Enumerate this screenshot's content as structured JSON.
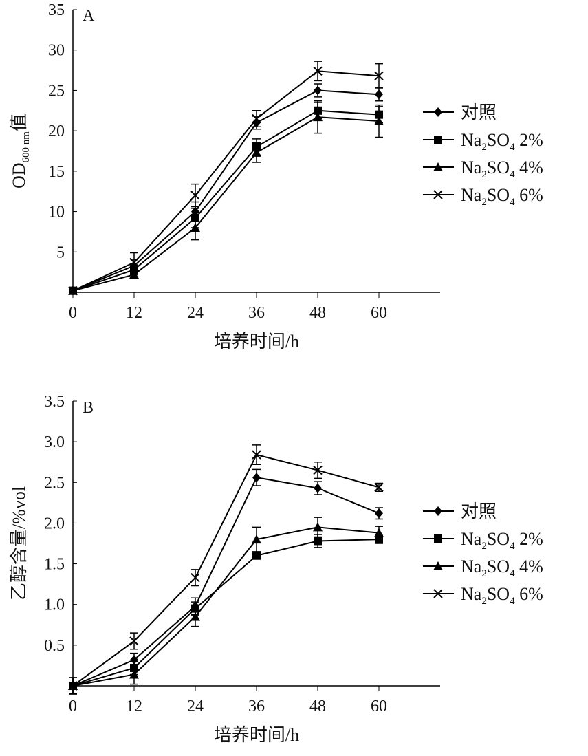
{
  "chart_data": [
    {
      "type": "line",
      "panel_label": "A",
      "title": "",
      "xlabel": "培养时间/h",
      "ylabel_main": "OD",
      "ylabel_sub": "600 nm",
      "ylabel_suffix": "值",
      "x": [
        0,
        12,
        24,
        36,
        48,
        60
      ],
      "xticks": [
        "0",
        "12",
        "24",
        "36",
        "48",
        "60"
      ],
      "xlim": [
        0,
        72
      ],
      "yticks": [
        "5",
        "10",
        "15",
        "20",
        "25",
        "30",
        "35"
      ],
      "ytick_values": [
        5,
        10,
        15,
        20,
        25,
        30,
        35
      ],
      "ylim": [
        0,
        35
      ],
      "series": [
        {
          "name": "对照",
          "marker": "diamond",
          "values": [
            0.2,
            3.3,
            10,
            21,
            25,
            24.5
          ],
          "err": [
            0.3,
            0.8,
            1.2,
            0.8,
            0.8,
            0.8
          ]
        },
        {
          "name": "Na2SO4 2%",
          "name_parts": [
            "Na",
            "2",
            "SO",
            "4",
            " 2%"
          ],
          "marker": "square",
          "values": [
            0.2,
            2.8,
            9.2,
            18,
            22.5,
            22
          ],
          "err": [
            0.3,
            0.6,
            1.2,
            1,
            1,
            1
          ]
        },
        {
          "name": "Na2SO4 4%",
          "name_parts": [
            "Na",
            "2",
            "SO",
            "4",
            " 4%"
          ],
          "marker": "triangle",
          "values": [
            0.2,
            2.2,
            8,
            17.3,
            21.7,
            21.2
          ],
          "err": [
            0.3,
            0.5,
            1.5,
            1.2,
            2,
            2
          ]
        },
        {
          "name": "Na2SO4 6%",
          "name_parts": [
            "Na",
            "2",
            "SO",
            "4",
            " 6%"
          ],
          "marker": "x",
          "values": [
            0.2,
            3.7,
            12,
            21.5,
            27.4,
            26.8
          ],
          "err": [
            0.3,
            1.2,
            1.4,
            1,
            1.2,
            1.5
          ]
        }
      ]
    },
    {
      "type": "line",
      "panel_label": "B",
      "title": "",
      "xlabel": "培养时间/h",
      "ylabel_main": "乙醇含量/%vol",
      "ylabel_sub": "",
      "ylabel_suffix": "",
      "x": [
        0,
        12,
        24,
        36,
        48,
        60
      ],
      "xticks": [
        "0",
        "12",
        "24",
        "36",
        "48",
        "60"
      ],
      "xlim": [
        0,
        72
      ],
      "yticks": [
        "0.5",
        "1.0",
        "1.5",
        "2.0",
        "2.5",
        "3.0",
        "3.5"
      ],
      "ytick_values": [
        0.5,
        1,
        1.5,
        2,
        2.5,
        3,
        3.5
      ],
      "ylim": [
        0,
        3.5
      ],
      "series": [
        {
          "name": "对照",
          "marker": "diamond",
          "values": [
            0,
            0.32,
            0.98,
            2.56,
            2.43,
            2.12
          ],
          "err": [
            0.1,
            0.08,
            0.1,
            0.1,
            0.08,
            0.07
          ]
        },
        {
          "name": "Na2SO4 2%",
          "name_parts": [
            "Na",
            "2",
            "SO",
            "4",
            " 2%"
          ],
          "marker": "square",
          "values": [
            0,
            0.22,
            0.95,
            1.6,
            1.78,
            1.8
          ],
          "err": [
            0.1,
            0.08,
            0.08,
            0.04,
            0.08,
            0.05
          ]
        },
        {
          "name": "Na2SO4 4%",
          "name_parts": [
            "Na",
            "2",
            "SO",
            "4",
            " 4%"
          ],
          "marker": "triangle",
          "values": [
            0,
            0.14,
            0.85,
            1.8,
            1.95,
            1.88
          ],
          "err": [
            0.1,
            0.12,
            0.12,
            0.15,
            0.12,
            0.08
          ]
        },
        {
          "name": "Na2SO4 6%",
          "name_parts": [
            "Na",
            "2",
            "SO",
            "4",
            " 6%"
          ],
          "marker": "x",
          "values": [
            0,
            0.55,
            1.33,
            2.84,
            2.65,
            2.44
          ],
          "err": [
            0.1,
            0.1,
            0.1,
            0.12,
            0.1,
            0.05
          ]
        }
      ]
    }
  ]
}
